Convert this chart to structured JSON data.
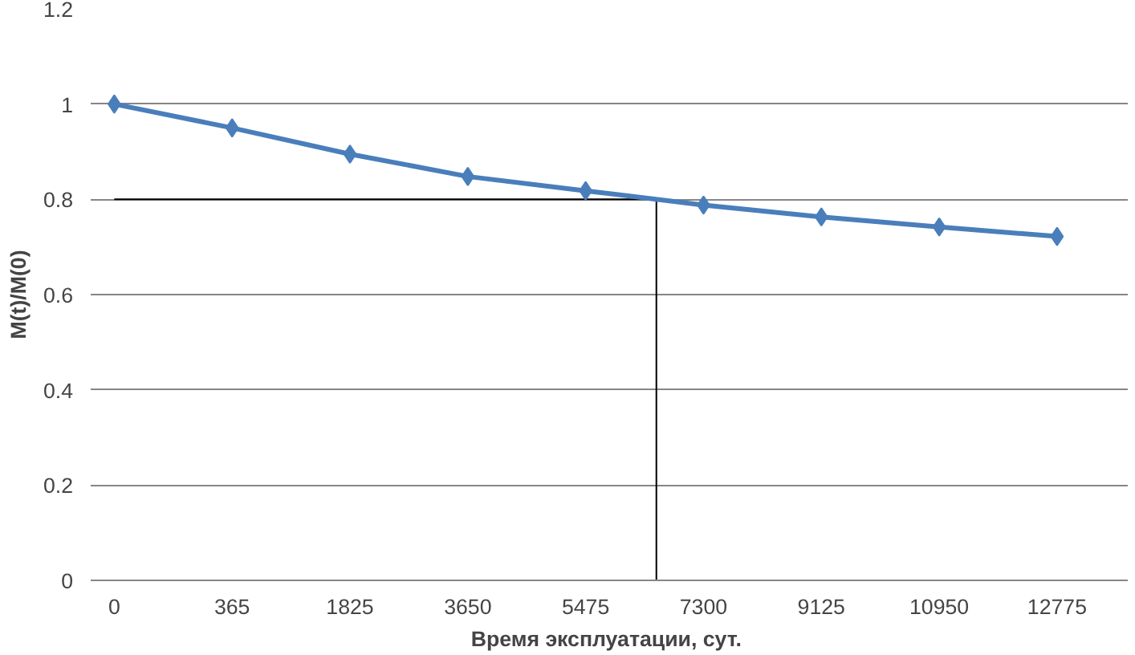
{
  "chart_data": {
    "type": "line",
    "xlabel": "Время эксплуатации,  сут.",
    "ylabel": "M(t)/M(0)",
    "categories": [
      "0",
      "365",
      "1825",
      "3650",
      "5475",
      "7300",
      "9125",
      "10950",
      "12775"
    ],
    "series": [
      {
        "color": "#4a7ebb",
        "values": [
          1.0,
          0.95,
          0.895,
          0.848,
          0.818,
          0.788,
          0.763,
          0.742,
          0.722
        ]
      }
    ],
    "ylim": [
      0,
      1.2
    ],
    "yticks": [
      0,
      {
        "value": 0.2,
        "label": "0.2"
      },
      {
        "value": 0.4,
        "label": "0.4"
      },
      {
        "value": 0.6,
        "label": "0.6"
      },
      {
        "value": 0.8,
        "label": "0.8"
      },
      1,
      {
        "value": 1.2,
        "label": "1.2"
      }
    ],
    "grid": "y",
    "marker": "diamond",
    "line_style": "solid",
    "ref_lines": [
      {
        "axis": "y",
        "value": 0.8,
        "color": "#000000"
      }
    ]
  }
}
